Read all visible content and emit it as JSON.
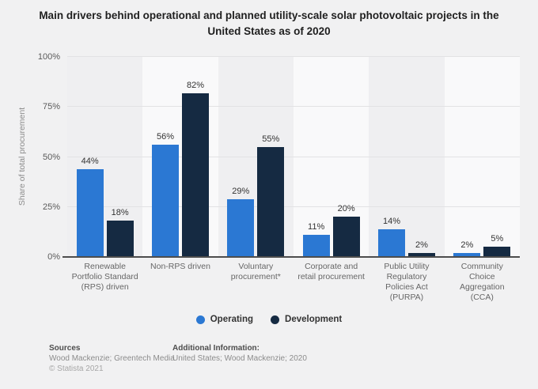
{
  "title": "Main drivers behind operational and planned utility-scale solar photovoltaic projects in the United States as of 2020",
  "chart_data": {
    "type": "bar",
    "categories": [
      "Renewable Portfolio Standard (RPS) driven",
      "Non-RPS driven",
      "Voluntary procurement*",
      "Corporate and retail procurement",
      "Public Utility Regulatory Policies Act (PURPA)",
      "Community Choice Aggregation (CCA)"
    ],
    "series": [
      {
        "name": "Operating",
        "color": "#2b78d3",
        "values": [
          44,
          56,
          29,
          11,
          14,
          2
        ]
      },
      {
        "name": "Development",
        "color": "#152a42",
        "values": [
          18,
          82,
          55,
          20,
          2,
          5
        ]
      }
    ],
    "ylabel": "Share of total procurement",
    "xlabel": "",
    "ylim": [
      0,
      100
    ],
    "yticks": [
      0,
      25,
      50,
      75,
      100
    ],
    "ytick_suffix": "%",
    "value_label_suffix": "%",
    "grid": "horizontal",
    "legend_position": "bottom"
  },
  "footer": {
    "sources_heading": "Sources",
    "sources_line": "Wood Mackenzie; Greentech Media",
    "copyright": "© Statista 2021",
    "additional_heading": "Additional Information:",
    "additional_line": "United States; Wood Mackenzie; 2020"
  }
}
